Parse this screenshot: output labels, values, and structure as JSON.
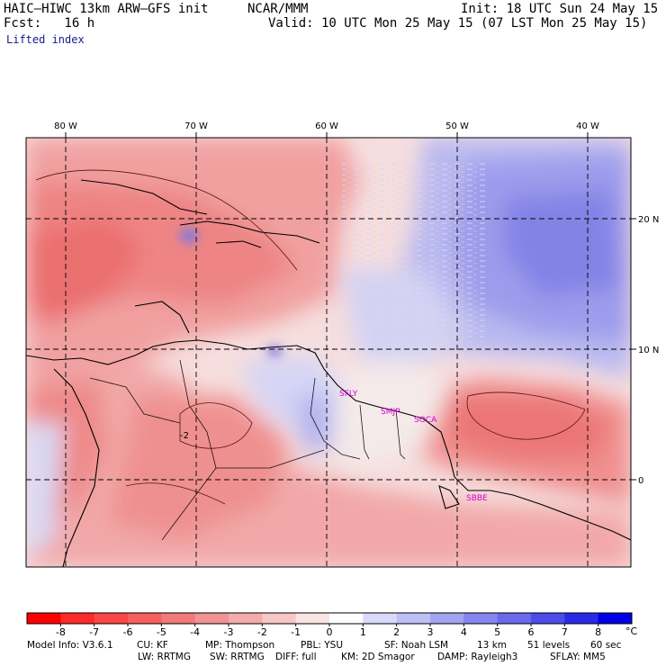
{
  "header": {
    "model": "HAIC–HIWC 13km ARW–GFS init",
    "org": "NCAR/MMM",
    "init": "Init: 18 UTC Sun 24 May 15",
    "fcst": "Fcst:   16 h",
    "valid": "Valid: 10 UTC Mon 25 May 15 (07 LST Mon 25 May 15)",
    "field": "Lifted index"
  },
  "map": {
    "lon_labels": [
      "80 W",
      "70 W",
      "60 W",
      "50 W",
      "40 W"
    ],
    "lon_values": [
      -80,
      -70,
      -60,
      -50,
      -40
    ],
    "lat_labels": [
      "20 N",
      "10 N",
      "0"
    ],
    "lat_values": [
      20,
      10,
      0
    ],
    "stations": [
      "SFLY",
      "SMJP",
      "SOCA",
      "SBBE"
    ],
    "contour_label": "-2"
  },
  "colorbar": {
    "labels": [
      "-8",
      "-7",
      "-6",
      "-5",
      "-4",
      "-3",
      "-2",
      "-1",
      "0",
      "1",
      "2",
      "3",
      "4",
      "5",
      "6",
      "7",
      "8"
    ],
    "unit": "°C",
    "colors": [
      "#ff0000",
      "#ff2a2a",
      "#fb4747",
      "#f66060",
      "#f27a7a",
      "#f09393",
      "#f3abab",
      "#f7c6c6",
      "#fae4e4",
      "#ffffff",
      "#d9d9fb",
      "#bfbff7",
      "#a3a3f3",
      "#8585ef",
      "#6a6aeb",
      "#4c4ce8",
      "#2a2ae6",
      "#0000e6"
    ]
  },
  "footer": {
    "line1_a": "Model Info: V3.6.1",
    "line1_b": "CU: KF",
    "line1_c": "MP: Thompson",
    "line1_d": "PBL: YSU",
    "line1_e": "SF: Noah LSM",
    "line1_f": "13 km",
    "line1_g": "51 levels",
    "line1_h": "60 sec",
    "line2_a": "LW: RRTMG",
    "line2_b": "SW: RRTMG",
    "line2_c": "DIFF: full",
    "line2_d": "KM: 2D Smagor",
    "line2_e": "DAMP: Rayleigh3",
    "line2_f": "SFLAY: MM5"
  }
}
